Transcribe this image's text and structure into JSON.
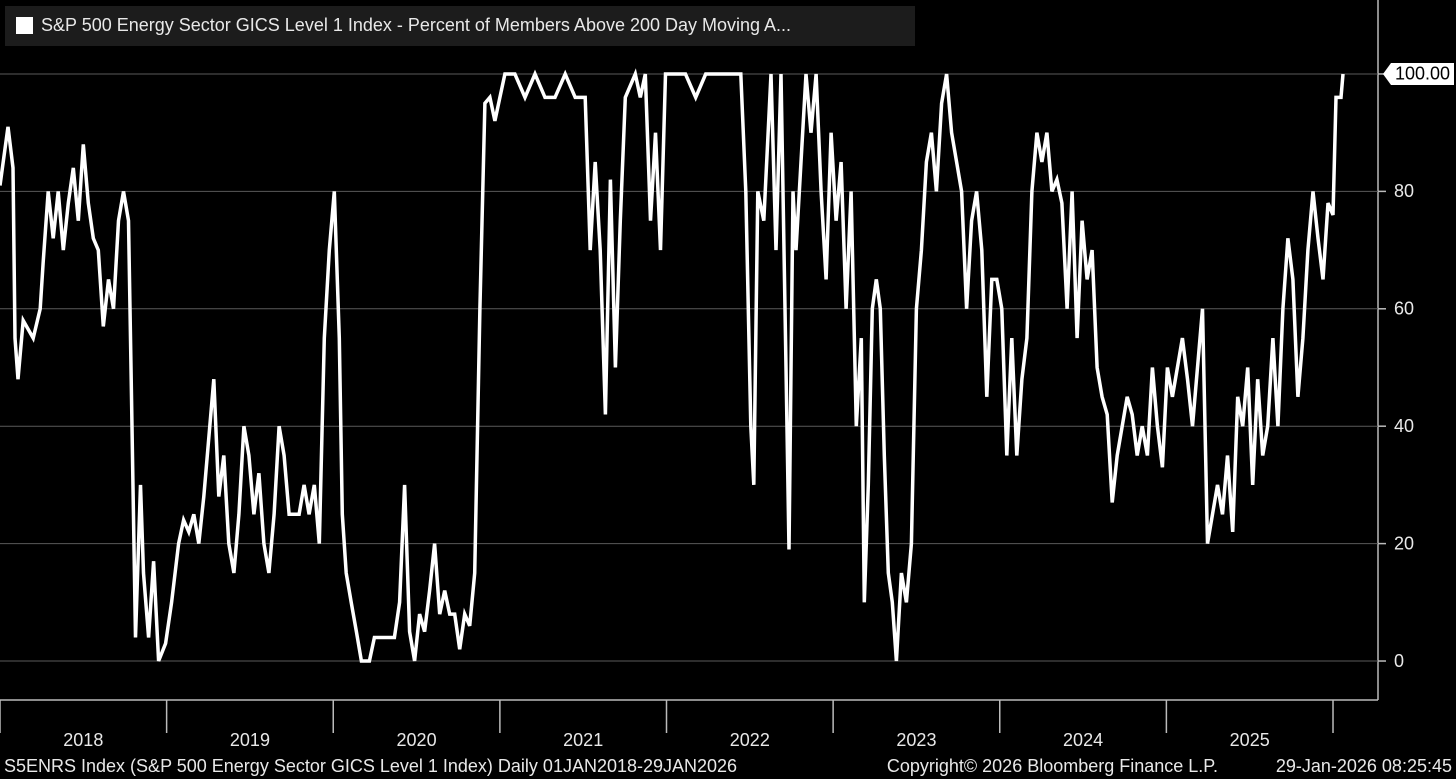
{
  "chart_data": {
    "type": "line",
    "title": "S&P 500 Energy Sector GICS Level 1 Index - Percent of Members Above 200 Day Moving A...",
    "footer": "S5ENRS Index (S&P 500 Energy Sector GICS Level 1 Index) Daily 01JAN2018-29JAN2026",
    "copyright": "Copyright© 2026 Bloomberg Finance L.P.",
    "timestamp": "29-Jan-2026 08:25:45",
    "xlim": [
      2018,
      2026.27
    ],
    "ylim": [
      -6.3,
      112.6
    ],
    "yticks": [
      0,
      20,
      40,
      60,
      80,
      {
        "value": 100,
        "label": "100.00"
      }
    ],
    "xticks": [
      {
        "value": 2018.5,
        "label": "2018"
      },
      {
        "value": 2019.5,
        "label": "2019"
      },
      {
        "value": 2020.5,
        "label": "2020"
      },
      {
        "value": 2021.5,
        "label": "2021"
      },
      {
        "value": 2022.5,
        "label": "2022"
      },
      {
        "value": 2023.5,
        "label": "2023"
      },
      {
        "value": 2024.5,
        "label": "2024"
      },
      {
        "value": 2025.5,
        "label": "2025"
      }
    ],
    "xminor_ticks": [
      2018,
      2019,
      2020,
      2021,
      2022,
      2023,
      2024,
      2025,
      2026
    ],
    "grid": true,
    "series": [
      {
        "color": "#ffffff",
        "x": [
          2018.0,
          2018.048,
          2018.078,
          2018.09,
          2018.108,
          2018.139,
          2018.199,
          2018.241,
          2018.259,
          2018.289,
          2018.319,
          2018.349,
          2018.38,
          2018.41,
          2018.44,
          2018.47,
          2018.5,
          2018.53,
          2018.56,
          2018.59,
          2018.62,
          2018.651,
          2018.681,
          2018.711,
          2018.741,
          2018.771,
          2018.789,
          2018.813,
          2018.843,
          2018.861,
          2018.892,
          2018.922,
          2018.952,
          2018.994,
          2019.03,
          2019.072,
          2019.102,
          2019.133,
          2019.163,
          2019.193,
          2019.223,
          2019.253,
          2019.283,
          2019.313,
          2019.343,
          2019.373,
          2019.404,
          2019.434,
          2019.464,
          2019.494,
          2019.524,
          2019.554,
          2019.584,
          2019.614,
          2019.645,
          2019.675,
          2019.705,
          2019.735,
          2019.765,
          2019.795,
          2019.825,
          2019.855,
          2019.886,
          2019.916,
          2019.946,
          2019.976,
          2020.006,
          2020.036,
          2020.054,
          2020.078,
          2020.108,
          2020.139,
          2020.169,
          2020.217,
          2020.247,
          2020.307,
          2020.367,
          2020.398,
          2020.428,
          2020.458,
          2020.488,
          2020.518,
          2020.548,
          2020.578,
          2020.608,
          2020.639,
          2020.669,
          2020.699,
          2020.729,
          2020.759,
          2020.789,
          2020.819,
          2020.849,
          2020.88,
          2020.91,
          2020.94,
          2020.97,
          2021.0,
          2021.03,
          2021.09,
          2021.151,
          2021.211,
          2021.271,
          2021.331,
          2021.392,
          2021.452,
          2021.512,
          2021.542,
          2021.572,
          2021.602,
          2021.633,
          2021.663,
          2021.693,
          2021.723,
          2021.753,
          2021.813,
          2021.843,
          2021.873,
          2021.904,
          2021.934,
          2021.964,
          2021.994,
          2022.054,
          2022.114,
          2022.175,
          2022.235,
          2022.295,
          2022.355,
          2022.446,
          2022.476,
          2022.506,
          2022.524,
          2022.548,
          2022.584,
          2022.627,
          2022.657,
          2022.687,
          2022.717,
          2022.735,
          2022.759,
          2022.777,
          2022.807,
          2022.837,
          2022.867,
          2022.898,
          2022.928,
          2022.958,
          2022.988,
          2023.018,
          2023.048,
          2023.078,
          2023.108,
          2023.139,
          2023.169,
          2023.187,
          2023.211,
          2023.235,
          2023.259,
          2023.283,
          2023.307,
          2023.331,
          2023.355,
          2023.38,
          2023.41,
          2023.44,
          2023.47,
          2023.5,
          2023.53,
          2023.56,
          2023.59,
          2023.62,
          2023.651,
          2023.681,
          2023.711,
          2023.741,
          2023.771,
          2023.801,
          2023.831,
          2023.861,
          2023.892,
          2023.922,
          2023.952,
          2023.982,
          2024.012,
          2024.042,
          2024.072,
          2024.102,
          2024.133,
          2024.163,
          2024.193,
          2024.223,
          2024.253,
          2024.283,
          2024.313,
          2024.343,
          2024.373,
          2024.404,
          2024.434,
          2024.464,
          2024.494,
          2024.524,
          2024.554,
          2024.584,
          2024.614,
          2024.645,
          2024.675,
          2024.705,
          2024.735,
          2024.765,
          2024.795,
          2024.825,
          2024.855,
          2024.886,
          2024.916,
          2024.946,
          2024.976,
          2025.006,
          2025.036,
          2025.066,
          2025.096,
          2025.127,
          2025.157,
          2025.187,
          2025.217,
          2025.247,
          2025.277,
          2025.307,
          2025.337,
          2025.367,
          2025.398,
          2025.428,
          2025.458,
          2025.488,
          2025.518,
          2025.548,
          2025.578,
          2025.608,
          2025.639,
          2025.669,
          2025.699,
          2025.729,
          2025.759,
          2025.789,
          2025.819,
          2025.849,
          2025.88,
          2025.91,
          2025.94,
          2025.97,
          2026.0,
          2026.018,
          2026.048,
          2026.06
        ],
        "values": [
          81,
          91,
          84,
          55,
          48,
          58,
          55,
          60,
          68,
          80,
          72,
          80,
          70,
          78,
          84,
          75,
          88,
          78,
          72,
          70,
          57,
          65,
          60,
          75,
          80,
          75,
          45,
          4,
          30,
          15,
          4,
          17,
          0,
          3,
          10,
          20,
          24,
          22,
          25,
          20,
          28,
          38,
          48,
          28,
          35,
          20,
          15,
          25,
          40,
          35,
          25,
          32,
          20,
          15,
          25,
          40,
          35,
          25,
          25,
          25,
          30,
          25,
          30,
          20,
          55,
          70,
          80,
          55,
          25,
          15,
          10,
          5,
          0,
          0,
          4,
          4,
          4,
          10,
          30,
          5,
          0,
          8,
          5,
          12,
          20,
          8,
          12,
          8,
          8,
          2,
          8,
          6,
          15,
          60,
          95,
          96,
          92,
          96,
          100,
          100,
          96,
          100,
          96,
          96,
          100,
          96,
          96,
          70,
          85,
          70,
          42,
          82,
          50,
          75,
          96,
          100,
          96,
          100,
          75,
          90,
          70,
          100,
          100,
          100,
          96,
          100,
          100,
          100,
          100,
          80,
          40,
          30,
          80,
          75,
          100,
          70,
          100,
          50,
          19,
          80,
          70,
          85,
          100,
          90,
          100,
          80,
          65,
          90,
          75,
          85,
          60,
          80,
          40,
          55,
          10,
          30,
          60,
          65,
          60,
          35,
          15,
          10,
          0,
          15,
          10,
          20,
          60,
          70,
          85,
          90,
          80,
          95,
          100,
          90,
          85,
          80,
          60,
          75,
          80,
          70,
          45,
          65,
          65,
          60,
          35,
          55,
          35,
          48,
          55,
          80,
          90,
          85,
          90,
          80,
          82,
          78,
          60,
          80,
          55,
          75,
          65,
          70,
          50,
          45,
          42,
          27,
          35,
          40,
          45,
          42,
          35,
          40,
          35,
          50,
          40,
          33,
          50,
          45,
          50,
          55,
          48,
          40,
          50,
          60,
          20,
          25,
          30,
          25,
          35,
          22,
          45,
          40,
          50,
          30,
          48,
          35,
          40,
          55,
          40,
          60,
          72,
          65,
          45,
          55,
          70,
          80,
          72,
          65,
          78,
          76,
          96,
          96,
          100
        ]
      }
    ]
  }
}
